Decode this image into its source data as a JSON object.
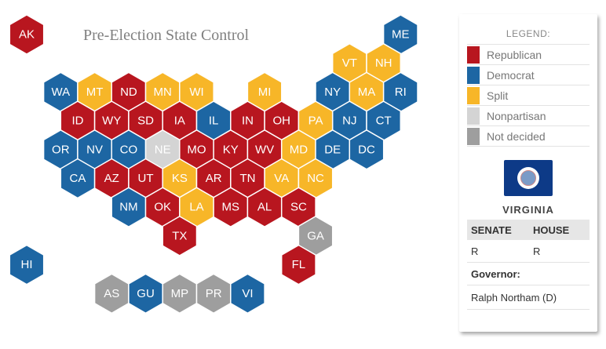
{
  "title": "Pre-Election State Control",
  "colors": {
    "republican": "#b8161f",
    "democrat": "#1d66a3",
    "split": "#f7b628",
    "nonpartisan": "#d4d4d4",
    "not_decided": "#9e9e9e"
  },
  "states": [
    {
      "abbr": "AK",
      "party": "republican",
      "col": 0,
      "row": 0
    },
    {
      "abbr": "ME",
      "party": "democrat",
      "col": 11,
      "row": 0
    },
    {
      "abbr": "VT",
      "party": "split",
      "col": 9,
      "row": 1
    },
    {
      "abbr": "NH",
      "party": "split",
      "col": 10,
      "row": 1
    },
    {
      "abbr": "WA",
      "party": "democrat",
      "col": 1,
      "row": 2
    },
    {
      "abbr": "MT",
      "party": "split",
      "col": 2,
      "row": 2
    },
    {
      "abbr": "ND",
      "party": "republican",
      "col": 3,
      "row": 2
    },
    {
      "abbr": "MN",
      "party": "split",
      "col": 4,
      "row": 2
    },
    {
      "abbr": "WI",
      "party": "split",
      "col": 5,
      "row": 2
    },
    {
      "abbr": "MI",
      "party": "split",
      "col": 7,
      "row": 2
    },
    {
      "abbr": "NY",
      "party": "democrat",
      "col": 9,
      "row": 2
    },
    {
      "abbr": "MA",
      "party": "split",
      "col": 10,
      "row": 2
    },
    {
      "abbr": "RI",
      "party": "democrat",
      "col": 11,
      "row": 2
    },
    {
      "abbr": "ID",
      "party": "republican",
      "col": 1,
      "row": 3
    },
    {
      "abbr": "WY",
      "party": "republican",
      "col": 2,
      "row": 3
    },
    {
      "abbr": "SD",
      "party": "republican",
      "col": 3,
      "row": 3
    },
    {
      "abbr": "IA",
      "party": "republican",
      "col": 4,
      "row": 3
    },
    {
      "abbr": "IL",
      "party": "democrat",
      "col": 5,
      "row": 3
    },
    {
      "abbr": "IN",
      "party": "republican",
      "col": 6,
      "row": 3
    },
    {
      "abbr": "OH",
      "party": "republican",
      "col": 7,
      "row": 3
    },
    {
      "abbr": "PA",
      "party": "split",
      "col": 8,
      "row": 3
    },
    {
      "abbr": "NJ",
      "party": "democrat",
      "col": 9,
      "row": 3
    },
    {
      "abbr": "CT",
      "party": "democrat",
      "col": 10,
      "row": 3
    },
    {
      "abbr": "OR",
      "party": "democrat",
      "col": 1,
      "row": 4
    },
    {
      "abbr": "NV",
      "party": "democrat",
      "col": 2,
      "row": 4
    },
    {
      "abbr": "CO",
      "party": "democrat",
      "col": 3,
      "row": 4
    },
    {
      "abbr": "NE",
      "party": "nonpartisan",
      "col": 4,
      "row": 4
    },
    {
      "abbr": "MO",
      "party": "republican",
      "col": 5,
      "row": 4
    },
    {
      "abbr": "KY",
      "party": "republican",
      "col": 6,
      "row": 4
    },
    {
      "abbr": "WV",
      "party": "republican",
      "col": 7,
      "row": 4
    },
    {
      "abbr": "MD",
      "party": "split",
      "col": 8,
      "row": 4
    },
    {
      "abbr": "DE",
      "party": "democrat",
      "col": 9,
      "row": 4
    },
    {
      "abbr": "DC",
      "party": "democrat",
      "col": 10,
      "row": 4
    },
    {
      "abbr": "CA",
      "party": "democrat",
      "col": 1,
      "row": 5
    },
    {
      "abbr": "AZ",
      "party": "republican",
      "col": 2,
      "row": 5
    },
    {
      "abbr": "UT",
      "party": "republican",
      "col": 3,
      "row": 5
    },
    {
      "abbr": "KS",
      "party": "split",
      "col": 4,
      "row": 5
    },
    {
      "abbr": "AR",
      "party": "republican",
      "col": 5,
      "row": 5
    },
    {
      "abbr": "TN",
      "party": "republican",
      "col": 6,
      "row": 5
    },
    {
      "abbr": "VA",
      "party": "split",
      "col": 7,
      "row": 5
    },
    {
      "abbr": "NC",
      "party": "split",
      "col": 8,
      "row": 5
    },
    {
      "abbr": "NM",
      "party": "democrat",
      "col": 3,
      "row": 6
    },
    {
      "abbr": "OK",
      "party": "republican",
      "col": 4,
      "row": 6
    },
    {
      "abbr": "LA",
      "party": "split",
      "col": 5,
      "row": 6
    },
    {
      "abbr": "MS",
      "party": "republican",
      "col": 6,
      "row": 6
    },
    {
      "abbr": "AL",
      "party": "republican",
      "col": 7,
      "row": 6
    },
    {
      "abbr": "SC",
      "party": "republican",
      "col": 8,
      "row": 6
    },
    {
      "abbr": "TX",
      "party": "republican",
      "col": 4,
      "row": 7
    },
    {
      "abbr": "GA",
      "party": "not_decided",
      "col": 8,
      "row": 7
    },
    {
      "abbr": "HI",
      "party": "democrat",
      "col": 0,
      "row": 8
    },
    {
      "abbr": "FL",
      "party": "republican",
      "col": 8,
      "row": 8
    },
    {
      "abbr": "AS",
      "party": "not_decided",
      "col": 2,
      "row": 9
    },
    {
      "abbr": "GU",
      "party": "democrat",
      "col": 3,
      "row": 9
    },
    {
      "abbr": "MP",
      "party": "not_decided",
      "col": 4,
      "row": 9
    },
    {
      "abbr": "PR",
      "party": "not_decided",
      "col": 5,
      "row": 9
    },
    {
      "abbr": "VI",
      "party": "democrat",
      "col": 6,
      "row": 9
    }
  ],
  "legend": {
    "title": "LEGEND:",
    "items": [
      {
        "label": "Republican",
        "key": "republican"
      },
      {
        "label": "Democrat",
        "key": "democrat"
      },
      {
        "label": "Split",
        "key": "split"
      },
      {
        "label": "Nonpartisan",
        "key": "nonpartisan"
      },
      {
        "label": "Not decided",
        "key": "not_decided"
      }
    ]
  },
  "detail": {
    "state_name": "VIRGINIA",
    "flag_icon": "virginia-flag-icon",
    "senate_header": "SENATE",
    "house_header": "HOUSE",
    "senate_value": "R",
    "house_value": "R",
    "governor_label": "Governor:",
    "governor_name": "Ralph Northam (D)"
  }
}
